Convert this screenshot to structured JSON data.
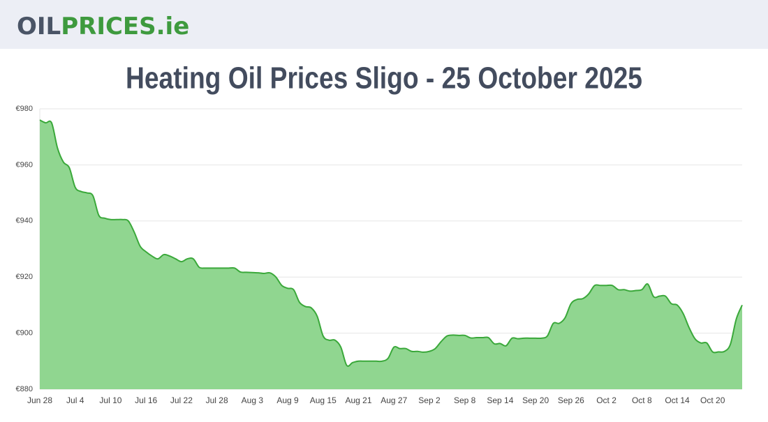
{
  "header": {
    "logo_part1": "OIL",
    "logo_part2": "PRICES.ie"
  },
  "chart_data": {
    "type": "area",
    "title": "Heating Oil Prices Sligo - 25 October 2025",
    "categories": [
      "Jun 28",
      null,
      null,
      null,
      null,
      null,
      "Jul 4",
      null,
      null,
      null,
      null,
      null,
      "Jul 10",
      null,
      null,
      null,
      null,
      null,
      "Jul 16",
      null,
      null,
      null,
      null,
      null,
      "Jul 22",
      null,
      null,
      null,
      null,
      null,
      "Jul 28",
      null,
      null,
      null,
      null,
      null,
      "Aug 3",
      null,
      null,
      null,
      null,
      null,
      "Aug 9",
      null,
      null,
      null,
      null,
      null,
      "Aug 15",
      null,
      null,
      null,
      null,
      null,
      "Aug 21",
      null,
      null,
      null,
      null,
      null,
      "Aug 27",
      null,
      null,
      null,
      null,
      null,
      "Sep 2",
      null,
      null,
      null,
      null,
      null,
      "Sep 8",
      null,
      null,
      null,
      null,
      null,
      "Sep 14",
      null,
      null,
      null,
      null,
      null,
      "Sep 20",
      null,
      null,
      null,
      null,
      null,
      "Sep 26",
      null,
      null,
      null,
      null,
      null,
      "Oct 2",
      null,
      null,
      null,
      null,
      null,
      "Oct 8",
      null,
      null,
      null,
      null,
      null,
      "Oct 14",
      null,
      null,
      null,
      null,
      null,
      "Oct 20",
      null,
      null,
      null,
      null,
      null
    ],
    "values": [
      976,
      975,
      975,
      966,
      961,
      959,
      952,
      950.5,
      950,
      949,
      942,
      941,
      940.5,
      940.5,
      940.5,
      940,
      936,
      931,
      929,
      927.5,
      926.5,
      928,
      927.5,
      926.5,
      925.5,
      926.5,
      926.5,
      923.5,
      923.2,
      923.2,
      923.2,
      923.2,
      923.2,
      923.2,
      921.8,
      921.7,
      921.6,
      921.5,
      921.3,
      921.5,
      920,
      917,
      916,
      915.5,
      911,
      909.5,
      909,
      906,
      899,
      897.5,
      897.5,
      895,
      888.5,
      889.5,
      890,
      890,
      890,
      890,
      890,
      891,
      895,
      894.5,
      894.5,
      893.5,
      893.5,
      893.2,
      893.5,
      894.5,
      897,
      899,
      899.3,
      899.2,
      899.2,
      898.3,
      898.4,
      898.4,
      898.4,
      896.2,
      896.3,
      895.5,
      898.2,
      898,
      898.2,
      898.2,
      898.2,
      898.2,
      899,
      903.5,
      903.5,
      905.5,
      910.5,
      912,
      912.3,
      914,
      917,
      917,
      917,
      917,
      915.5,
      915.5,
      915,
      915.2,
      915.5,
      917.5,
      913,
      913.2,
      913.2,
      910.5,
      910,
      907,
      902,
      898,
      896.5,
      896.5,
      893.3,
      893.3,
      893.5,
      896,
      905,
      910
    ],
    "color": "#3aa83a",
    "fill_color": "#90d690",
    "ylim": [
      880,
      980
    ],
    "yticks": [
      {
        "value": 880,
        "label": "€880"
      },
      {
        "value": 900,
        "label": "€900"
      },
      {
        "value": 920,
        "label": "€920"
      },
      {
        "value": 940,
        "label": "€940"
      },
      {
        "value": 960,
        "label": "€960"
      },
      {
        "value": 980,
        "label": "€980"
      }
    ],
    "grid": true
  }
}
